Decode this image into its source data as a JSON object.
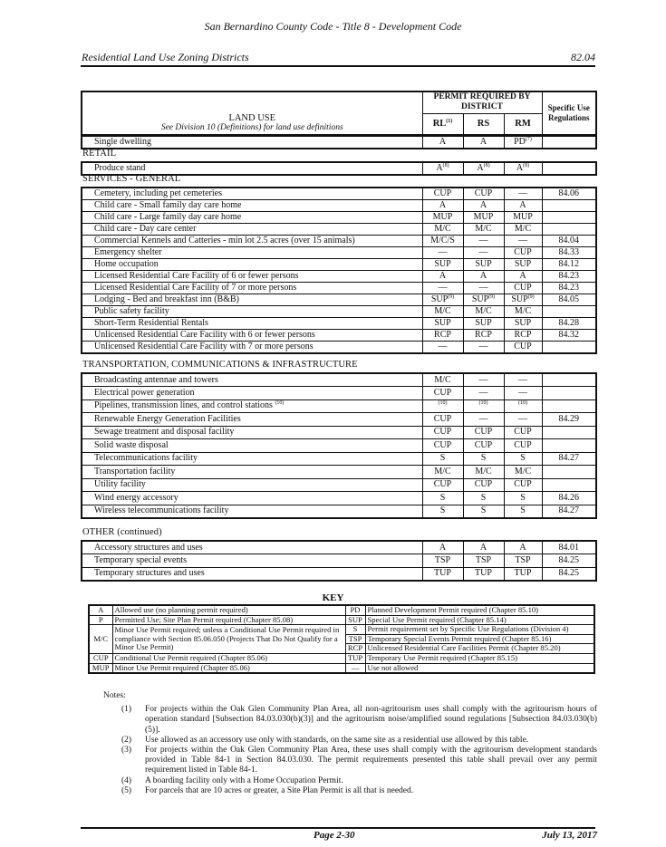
{
  "header": {
    "title": "San Bernardino County Code - Title 8 - Development Code",
    "section": "Residential Land Use Zoning Districts",
    "number": "82.04"
  },
  "table": {
    "land_use_heading": "LAND USE",
    "land_use_sub": "See Division 10 (Definitions) for land use definitions",
    "permit_heading": "PERMIT REQUIRED BY DISTRICT",
    "districts": [
      [
        "RL",
        "(1)"
      ],
      [
        "RS",
        ""
      ],
      [
        "RM",
        ""
      ]
    ],
    "spec_heading": "Specific Use Regulations",
    "top_rows": [
      {
        "use": "Single dwelling",
        "cells": [
          [
            "A",
            ""
          ],
          [
            "A",
            ""
          ],
          [
            "PD",
            "(7)"
          ]
        ],
        "reg": ""
      }
    ],
    "sections": [
      {
        "title": "RETAIL",
        "rows": [
          {
            "use": "Produce stand",
            "cells": [
              [
                "A",
                "(8)"
              ],
              [
                "A",
                "(8)"
              ],
              [
                "A",
                "(8)"
              ]
            ],
            "reg": ""
          }
        ]
      },
      {
        "title": "SERVICES - GENERAL",
        "rows": [
          {
            "use": "Cemetery, including pet cemeteries",
            "cells": [
              [
                "CUP",
                ""
              ],
              [
                "CUP",
                ""
              ],
              [
                "—",
                ""
              ]
            ],
            "reg": "84.06"
          },
          {
            "use": "Child care - Small family day care home",
            "cells": [
              [
                "A",
                ""
              ],
              [
                "A",
                ""
              ],
              [
                "A",
                ""
              ]
            ],
            "reg": ""
          },
          {
            "use": "Child care - Large family day care home",
            "cells": [
              [
                "MUP",
                ""
              ],
              [
                "MUP",
                ""
              ],
              [
                "MUP",
                ""
              ]
            ],
            "reg": ""
          },
          {
            "use": "Child care - Day care center",
            "cells": [
              [
                "M/C",
                ""
              ],
              [
                "M/C",
                ""
              ],
              [
                "M/C",
                ""
              ]
            ],
            "reg": ""
          },
          {
            "use": "Commercial Kennels and Catteries - min lot 2.5 acres (over 15 animals)",
            "cells": [
              [
                "M/C/S",
                ""
              ],
              [
                "—",
                ""
              ],
              [
                "—",
                ""
              ]
            ],
            "reg": "84.04"
          },
          {
            "use": "Emergency shelter",
            "cells": [
              [
                "—",
                ""
              ],
              [
                "—",
                ""
              ],
              [
                "CUP",
                ""
              ]
            ],
            "reg": "84.33"
          },
          {
            "use": "Home occupation",
            "cells": [
              [
                "SUP",
                ""
              ],
              [
                "SUP",
                ""
              ],
              [
                "SUP",
                ""
              ]
            ],
            "reg": "84.12"
          },
          {
            "use": "Licensed Residential Care Facility of 6 or fewer persons",
            "cells": [
              [
                "A",
                ""
              ],
              [
                "A",
                ""
              ],
              [
                "A",
                ""
              ]
            ],
            "reg": "84.23"
          },
          {
            "use": "Licensed Residential Care Facility of 7 or more persons",
            "cells": [
              [
                "—",
                ""
              ],
              [
                "—",
                ""
              ],
              [
                "CUP",
                ""
              ]
            ],
            "reg": "84.23"
          },
          {
            "use": "Lodging - Bed and breakfast inn (B&B)",
            "cells": [
              [
                "SUP",
                "(9)"
              ],
              [
                "SUP",
                "(9)"
              ],
              [
                "SUP",
                "(9)"
              ]
            ],
            "reg": "84.05"
          },
          {
            "use": "Public safety facility",
            "cells": [
              [
                "M/C",
                ""
              ],
              [
                "M/C",
                ""
              ],
              [
                "M/C",
                ""
              ]
            ],
            "reg": ""
          },
          {
            "use": "Short-Term Residential Rentals",
            "cells": [
              [
                "SUP",
                ""
              ],
              [
                "SUP",
                ""
              ],
              [
                "SUP",
                ""
              ]
            ],
            "reg": "84.28"
          },
          {
            "use": "Unlicensed Residential Care Facility with 6 or fewer persons",
            "cells": [
              [
                "RCP",
                ""
              ],
              [
                "RCP",
                ""
              ],
              [
                "RCP",
                ""
              ]
            ],
            "reg": "84.32"
          },
          {
            "use": "Unlicensed Residential Care Facility with 7 or more persons",
            "cells": [
              [
                "—",
                ""
              ],
              [
                "—",
                ""
              ],
              [
                "CUP",
                ""
              ]
            ],
            "reg": ""
          }
        ]
      },
      {
        "title": "TRANSPORTATION, COMMUNICATIONS & INFRASTRUCTURE",
        "rows": [
          {
            "use": "Broadcasting antennae and towers",
            "cells": [
              [
                "M/C",
                ""
              ],
              [
                "—",
                ""
              ],
              [
                "—",
                ""
              ]
            ],
            "reg": ""
          },
          {
            "use": "Electrical power generation",
            "cells": [
              [
                "CUP",
                ""
              ],
              [
                "—",
                ""
              ],
              [
                "—",
                ""
              ]
            ],
            "reg": ""
          },
          {
            "use": "Pipelines, transmission lines, and control stations",
            "use_sup": "(10)",
            "cells": [
              [
                "",
                "(10)"
              ],
              [
                "",
                "(10)"
              ],
              [
                "",
                "(10)"
              ]
            ],
            "reg": ""
          },
          {
            "use": "Renewable Energy Generation Facilities",
            "cells": [
              [
                "CUP",
                ""
              ],
              [
                "—",
                ""
              ],
              [
                "—",
                ""
              ]
            ],
            "reg": "84.29"
          },
          {
            "use": "Sewage treatment and disposal facility",
            "cells": [
              [
                "CUP",
                ""
              ],
              [
                "CUP",
                ""
              ],
              [
                "CUP",
                ""
              ]
            ],
            "reg": ""
          },
          {
            "use": "Solid waste disposal",
            "cells": [
              [
                "CUP",
                ""
              ],
              [
                "CUP",
                ""
              ],
              [
                "CUP",
                ""
              ]
            ],
            "reg": ""
          },
          {
            "use": "Telecommunications facility",
            "cells": [
              [
                "S",
                ""
              ],
              [
                "S",
                ""
              ],
              [
                "S",
                ""
              ]
            ],
            "reg": "84.27"
          },
          {
            "use": "Transportation facility",
            "cells": [
              [
                "M/C",
                ""
              ],
              [
                "M/C",
                ""
              ],
              [
                "M/C",
                ""
              ]
            ],
            "reg": ""
          },
          {
            "use": "Utility facility",
            "cells": [
              [
                "CUP",
                ""
              ],
              [
                "CUP",
                ""
              ],
              [
                "CUP",
                ""
              ]
            ],
            "reg": ""
          },
          {
            "use": "Wind energy accessory",
            "cells": [
              [
                "S",
                ""
              ],
              [
                "S",
                ""
              ],
              [
                "S",
                ""
              ]
            ],
            "reg": "84.26"
          },
          {
            "use": "Wireless telecommunications facility",
            "cells": [
              [
                "S",
                ""
              ],
              [
                "S",
                ""
              ],
              [
                "S",
                ""
              ]
            ],
            "reg": "84.27"
          }
        ]
      },
      {
        "title": "OTHER (continued)",
        "rows": [
          {
            "use": "Accessory structures and uses",
            "cells": [
              [
                "A",
                ""
              ],
              [
                "A",
                ""
              ],
              [
                "A",
                ""
              ]
            ],
            "reg": "84.01"
          },
          {
            "use": "Temporary special events",
            "cells": [
              [
                "TSP",
                ""
              ],
              [
                "TSP",
                ""
              ],
              [
                "TSP",
                ""
              ]
            ],
            "reg": "84.25"
          },
          {
            "use": "Temporary structures and uses",
            "cells": [
              [
                "TUP",
                ""
              ],
              [
                "TUP",
                ""
              ],
              [
                "TUP",
                ""
              ]
            ],
            "reg": "84.25"
          }
        ]
      }
    ]
  },
  "key": {
    "title": "KEY",
    "left": [
      {
        "k": "A",
        "d": "Allowed use (no planning permit required)"
      },
      {
        "k": "P",
        "d": "Permitted Use; Site Plan Permit required (Chapter 85.08)"
      },
      {
        "k": "M/C",
        "d": "Minor Use Permit required; unless a Conditional Use Permit required in compliance with Section 85.06.050 (Projects That Do Not Qualify for a Minor Use Permit)"
      },
      {
        "k": "CUP",
        "d": "Conditional Use Permit required (Chapter 85.06)"
      },
      {
        "k": "MUP",
        "d": "Minor Use Permit required (Chapter 85.06)"
      }
    ],
    "right": [
      {
        "k": "PD",
        "d": "Planned Development Permit required (Chapter  85.10)"
      },
      {
        "k": "SUP",
        "d": "Special Use Permit required (Chapter 85.14)"
      },
      {
        "k": "S",
        "d": "Permit requirement set by Specific Use Regulations (Division 4)"
      },
      {
        "k": "TSP",
        "d": "Temporary Special Events Permit required (Chapter 85.16)"
      },
      {
        "k": "RCP",
        "d": "Unlicensed Residential Care Facilities Permit (Chapter 85.20)"
      },
      {
        "k": "TUP",
        "d": "Temporary Use Permit required (Chapter 85.15)"
      },
      {
        "k": "—",
        "d": "Use not allowed"
      }
    ]
  },
  "notes": {
    "title": "Notes:",
    "items": [
      {
        "n": "(1)",
        "t": "For projects within the Oak Glen Community Plan Area, all non-agritourism uses shall comply with the agritourism hours of operation standard [Subsection 84.03.030(b)(3)] and the agritourism noise/amplified sound regulations [Subsection 84.03.030(b)(5)]."
      },
      {
        "n": "(2)",
        "t": "Use allowed as an accessory use only with standards, on the same site as a residential use allowed by this table."
      },
      {
        "n": "(3)",
        "t": "For projects within the Oak Glen Community Plan Area, these uses shall comply with the agritourism development standards provided in Table 84-1 in Section 84.03.030. The permit requirements presented this table shall prevail over any permit requirement listed in Table 84-1."
      },
      {
        "n": "(4)",
        "t": "A boarding facility only with a Home Occupation Permit."
      },
      {
        "n": "(5)",
        "t": "For parcels that are 10 acres or greater, a Site Plan Permit is all that is needed."
      }
    ]
  },
  "footer": {
    "page": "Page 2-30",
    "date": "July 13, 2017"
  }
}
